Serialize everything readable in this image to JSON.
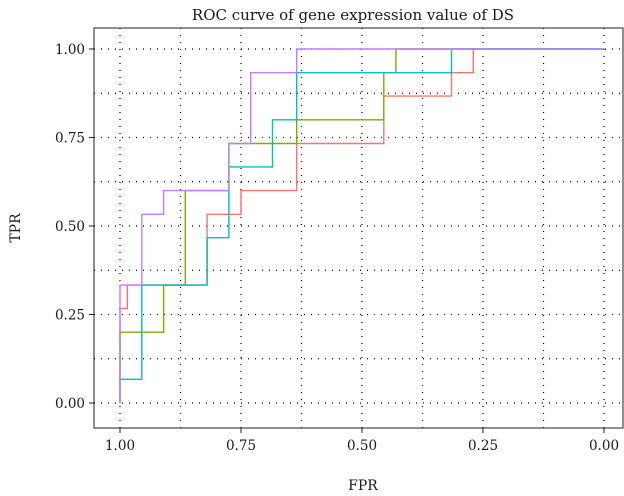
{
  "chart_data": {
    "type": "line",
    "title": "ROC curve of gene expression value of DS",
    "xlabel": "FPR",
    "ylabel": "TPR",
    "xlim": [
      1.0,
      0.0
    ],
    "ylim": [
      0.0,
      1.0
    ],
    "x_reversed": true,
    "grid": true,
    "grid_style": "dotted",
    "legend": "none",
    "xticks": [
      1.0,
      0.75,
      0.5,
      0.25,
      0.0
    ],
    "xtick_labels": [
      "1.00",
      "0.75",
      "0.50",
      "0.25",
      "0.00"
    ],
    "yticks": [
      0.0,
      0.25,
      0.5,
      0.75,
      1.0
    ],
    "ytick_labels": [
      "0.00",
      "0.25",
      "0.50",
      "0.75",
      "1.00"
    ],
    "series": [
      {
        "color": "#F8766D",
        "x": [
          1.0,
          1.0,
          0.985,
          0.985,
          0.955,
          0.955,
          0.82,
          0.82,
          0.75,
          0.75,
          0.635,
          0.635,
          0.455,
          0.455,
          0.315,
          0.315,
          0.27,
          0.27,
          0.0
        ],
        "y": [
          0.0,
          0.267,
          0.267,
          0.333,
          0.333,
          0.333,
          0.333,
          0.533,
          0.533,
          0.6,
          0.6,
          0.733,
          0.733,
          0.867,
          0.867,
          0.933,
          0.933,
          1.0,
          1.0
        ]
      },
      {
        "color": "#7CAE00",
        "x": [
          1.0,
          1.0,
          0.91,
          0.91,
          0.865,
          0.865,
          0.775,
          0.775,
          0.635,
          0.635,
          0.455,
          0.455,
          0.43,
          0.43,
          0.0
        ],
        "y": [
          0.0,
          0.2,
          0.2,
          0.333,
          0.333,
          0.6,
          0.6,
          0.733,
          0.733,
          0.8,
          0.8,
          0.933,
          0.933,
          1.0,
          1.0
        ]
      },
      {
        "color": "#00BFC4",
        "x": [
          1.0,
          1.0,
          0.955,
          0.955,
          0.82,
          0.82,
          0.775,
          0.775,
          0.685,
          0.685,
          0.635,
          0.635,
          0.315,
          0.315,
          0.0
        ],
        "y": [
          0.0,
          0.067,
          0.067,
          0.333,
          0.333,
          0.467,
          0.467,
          0.667,
          0.667,
          0.8,
          0.8,
          0.933,
          0.933,
          1.0,
          1.0
        ]
      },
      {
        "color": "#C77CFF",
        "x": [
          1.0,
          1.0,
          0.955,
          0.955,
          0.91,
          0.91,
          0.775,
          0.775,
          0.73,
          0.73,
          0.635,
          0.635,
          0.0
        ],
        "y": [
          0.0,
          0.333,
          0.333,
          0.533,
          0.533,
          0.6,
          0.6,
          0.733,
          0.733,
          0.933,
          0.933,
          1.0,
          1.0
        ]
      }
    ]
  }
}
